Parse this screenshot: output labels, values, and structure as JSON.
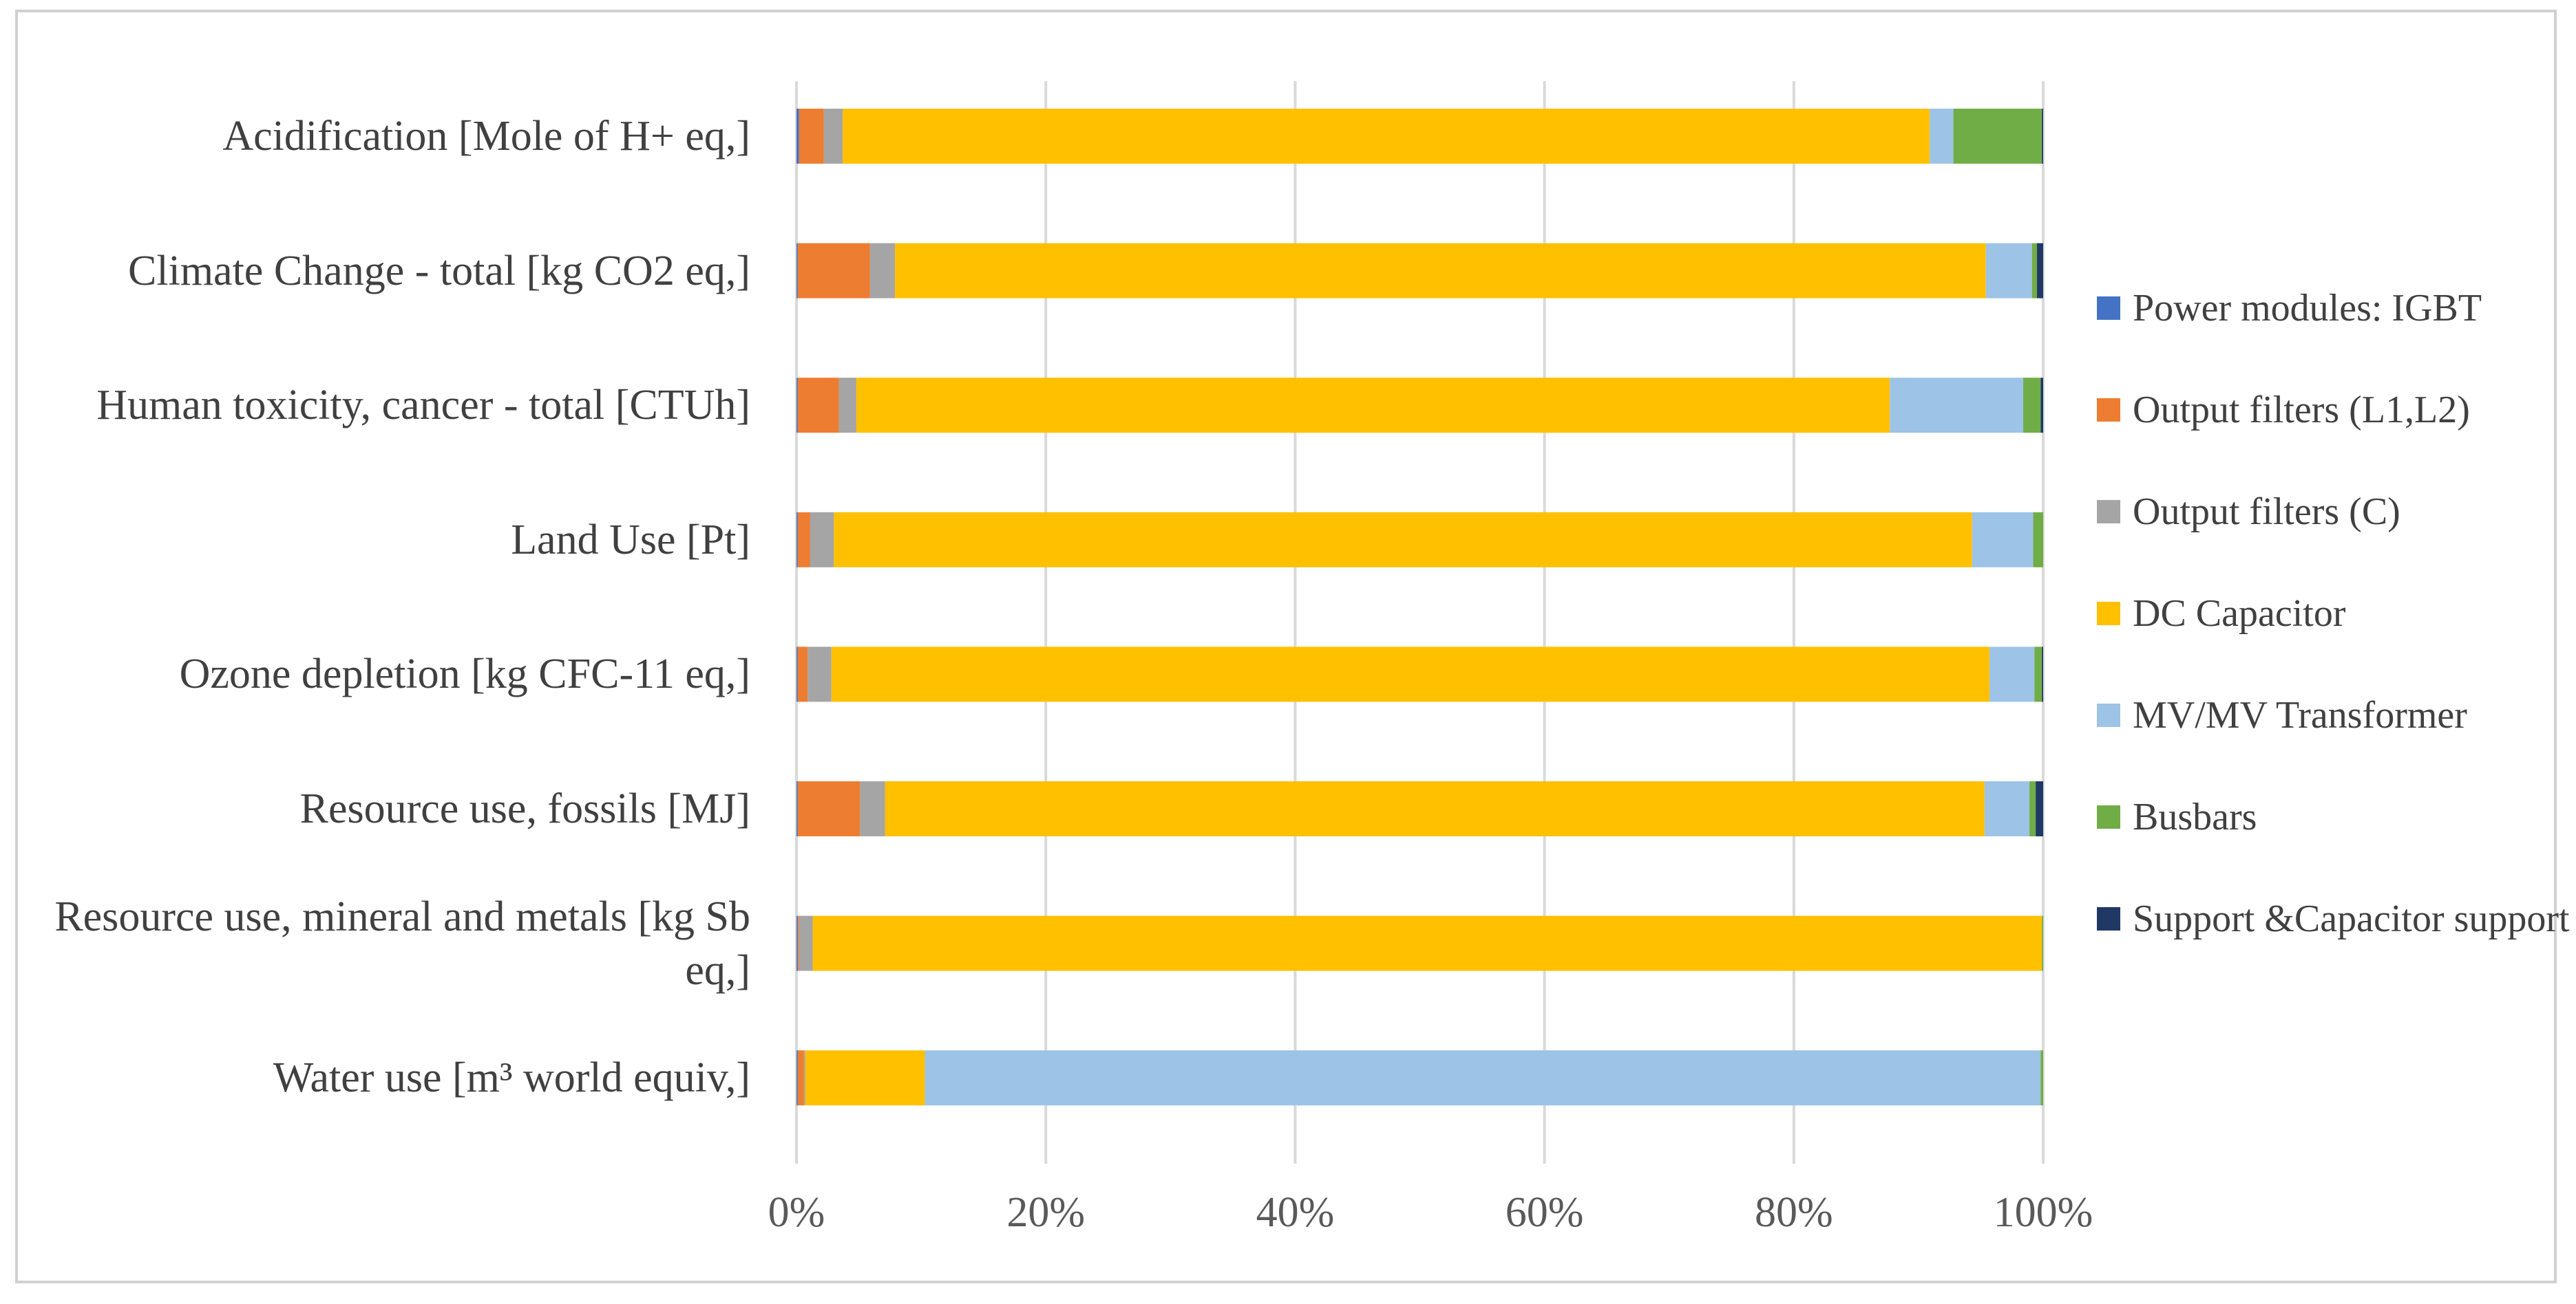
{
  "chart_data": {
    "type": "bar",
    "orientation": "horizontal",
    "stacked": "percent",
    "title": "",
    "xlabel": "",
    "ylabel": "",
    "categories": [
      "Acidification [Mole of H+ eq,]",
      "Climate Change - total [kg CO2 eq,]",
      "Human toxicity, cancer - total [CTUh]",
      "Land Use [Pt]",
      "Ozone depletion [kg CFC-11 eq,]",
      "Resource use, fossils [MJ]",
      "Resource use, mineral and metals [kg Sb eq,]",
      "Water use [m³ world equiv,]"
    ],
    "series": [
      {
        "name": "Power modules: IGBT",
        "color": "#4472C4",
        "values": [
          0.2,
          0.1,
          0.1,
          0.1,
          0.1,
          0.1,
          0.1,
          0.1
        ]
      },
      {
        "name": "Output filters (L1,L2)",
        "color": "#ED7D31",
        "values": [
          2.0,
          5.8,
          3.3,
          1.0,
          0.8,
          5.0,
          0.1,
          0.5
        ]
      },
      {
        "name": "Output filters (C)",
        "color": "#A5A5A5",
        "values": [
          1.5,
          2.0,
          1.4,
          1.9,
          1.9,
          2.0,
          1.1,
          0.1
        ]
      },
      {
        "name": "DC Capacitor",
        "color": "#FFC000",
        "values": [
          87.2,
          87.5,
          82.9,
          91.3,
          92.9,
          88.2,
          98.6,
          9.6
        ]
      },
      {
        "name": "MV/MV Transformer",
        "color": "#9DC3E6",
        "values": [
          1.9,
          3.7,
          10.7,
          4.9,
          3.6,
          3.6,
          0.0,
          89.5
        ]
      },
      {
        "name": "Busbars",
        "color": "#70AD47",
        "values": [
          7.1,
          0.4,
          1.4,
          0.8,
          0.6,
          0.5,
          0.1,
          0.2
        ]
      },
      {
        "name": "Support &Capacitor support",
        "color": "#1F3864",
        "values": [
          0.1,
          0.5,
          0.2,
          0.0,
          0.1,
          0.6,
          0.0,
          0.0
        ]
      }
    ],
    "xlim": [
      0,
      100
    ],
    "xticks": [
      "0%",
      "20%",
      "40%",
      "60%",
      "80%",
      "100%"
    ],
    "grid": "vertical",
    "legend": "right"
  }
}
